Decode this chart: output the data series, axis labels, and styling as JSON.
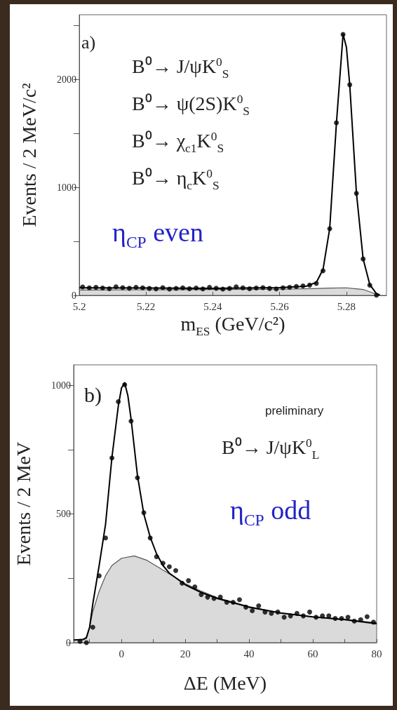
{
  "chart_data": [
    {
      "type": "scatter",
      "xlabel": "m$_{ES}$ (GeV/c²)",
      "ylabel": "Events / 2 MeV/c²",
      "xlim": [
        5.2,
        5.292
      ],
      "xticks": [
        5.2,
        5.22,
        5.24,
        5.26,
        5.28
      ],
      "ylim": [
        0,
        2600
      ],
      "yticks": [
        0,
        {
          "value": 500,
          "label": null
        },
        1000,
        {
          "value": 1500,
          "label": null
        },
        2000,
        {
          "value": 2500,
          "label": null
        }
      ],
      "annotations": [
        "a)",
        "B⁰→ J/ψK$^{0}$$_{S}$",
        "B⁰→ ψ(2S)K$^{0}$$_{S}$",
        "B⁰→ χ$_{c1}$K$^{0}$$_{S}$",
        "B⁰→ η$_{c}$K$^{0}$$_{S}$",
        "η$_{CP}$ even"
      ],
      "series": [
        {
          "type": "area",
          "color": "#555555",
          "marker": "none",
          "x": [
            5.2,
            5.22,
            5.24,
            5.26,
            5.27,
            5.275,
            5.28,
            5.285,
            5.29
          ],
          "values": [
            50,
            52,
            54,
            57,
            62,
            67,
            70,
            55,
            0
          ]
        },
        {
          "type": "line",
          "color": "#000000",
          "marker": "none",
          "x": [
            5.2,
            5.22,
            5.24,
            5.26,
            5.268,
            5.271,
            5.273,
            5.275,
            5.277,
            5.279,
            5.28,
            5.281,
            5.283,
            5.285,
            5.287,
            5.289,
            5.29
          ],
          "values": [
            70,
            68,
            65,
            72,
            85,
            120,
            240,
            620,
            1590,
            2420,
            2300,
            1950,
            950,
            340,
            100,
            15,
            5
          ]
        },
        {
          "color": "#000000",
          "marker": "circle",
          "x": [
            5.201,
            5.203,
            5.205,
            5.207,
            5.209,
            5.211,
            5.213,
            5.215,
            5.217,
            5.219,
            5.221,
            5.223,
            5.225,
            5.227,
            5.229,
            5.231,
            5.233,
            5.235,
            5.237,
            5.239,
            5.241,
            5.243,
            5.245,
            5.247,
            5.249,
            5.251,
            5.253,
            5.255,
            5.257,
            5.259,
            5.261,
            5.263,
            5.265,
            5.267,
            5.269,
            5.271,
            5.273,
            5.275,
            5.277,
            5.279,
            5.281,
            5.283,
            5.285,
            5.287,
            5.289
          ],
          "values": [
            78,
            70,
            74,
            68,
            62,
            80,
            72,
            66,
            75,
            70,
            64,
            60,
            72,
            58,
            65,
            70,
            62,
            68,
            60,
            74,
            66,
            58,
            64,
            80,
            70,
            62,
            68,
            72,
            64,
            60,
            70,
            75,
            82,
            88,
            95,
            110,
            228,
            617,
            1599,
            2417,
            1951,
            945,
            337,
            94,
            2
          ]
        }
      ]
    },
    {
      "type": "scatter",
      "xlabel": "ΔE (MeV)",
      "ylabel": "Events / 2 MeV",
      "xlim": [
        -15,
        80
      ],
      "xticks": [
        {
          "value": -10,
          "label": null
        },
        0,
        {
          "value": 10,
          "label": null
        },
        20,
        {
          "value": 30,
          "label": null
        },
        40,
        {
          "value": 50,
          "label": null
        },
        60,
        {
          "value": 70,
          "label": null
        },
        80
      ],
      "ylim": [
        0,
        1080
      ],
      "yticks": [
        0,
        {
          "value": 250,
          "label": null
        },
        500,
        {
          "value": 750,
          "label": null
        },
        1000
      ],
      "annotations": [
        "b)",
        "preliminary",
        "B⁰→ J/ψK$^{0}$$_{L}$",
        "η$_{CP}$ odd"
      ],
      "series": [
        {
          "type": "area",
          "color": "#555555",
          "marker": "none",
          "x": [
            -15,
            -11,
            -10,
            -9,
            -7,
            -5,
            -3,
            0,
            4,
            8,
            12,
            16,
            20,
            25,
            30,
            40,
            50,
            60,
            70,
            80
          ],
          "values": [
            10,
            15,
            60,
            120,
            200,
            260,
            300,
            328,
            337,
            320,
            290,
            260,
            230,
            200,
            175,
            140,
            115,
            100,
            88,
            72
          ]
        },
        {
          "type": "line",
          "color": "#000000",
          "marker": "none",
          "x": [
            -15,
            -12,
            -11,
            -10,
            -9,
            -7,
            -5,
            -3,
            -1,
            0,
            1,
            2,
            3,
            5,
            7,
            9,
            11,
            13,
            15,
            20,
            25,
            30,
            40,
            50,
            60,
            70,
            80
          ],
          "values": [
            10,
            12,
            20,
            60,
            150,
            300,
            460,
            720,
            920,
            990,
            1010,
            960,
            870,
            650,
            500,
            410,
            345,
            300,
            270,
            225,
            195,
            172,
            138,
            115,
            100,
            90,
            75
          ]
        },
        {
          "color": "#000000",
          "marker": "circle",
          "x": [
            -13,
            -11,
            -9,
            -7,
            -5,
            -3,
            -1,
            1,
            3,
            5,
            7,
            9,
            11,
            13,
            15,
            17,
            19,
            21,
            23,
            25,
            27,
            29,
            31,
            33,
            35,
            37,
            39,
            41,
            43,
            45,
            47,
            49,
            51,
            53,
            55,
            57,
            59,
            61,
            63,
            65,
            67,
            69,
            71,
            73,
            75,
            77,
            79
          ],
          "values": [
            5,
            0,
            60,
            260,
            407,
            718,
            937,
            1003,
            861,
            641,
            505,
            407,
            334,
            309,
            295,
            280,
            231,
            241,
            217,
            187,
            177,
            172,
            177,
            157,
            157,
            167,
            138,
            124,
            143,
            119,
            114,
            119,
            99,
            104,
            114,
            104,
            119,
            99,
            104,
            104,
            94,
            94,
            99,
            84,
            89,
            101,
            80
          ]
        }
      ]
    }
  ]
}
